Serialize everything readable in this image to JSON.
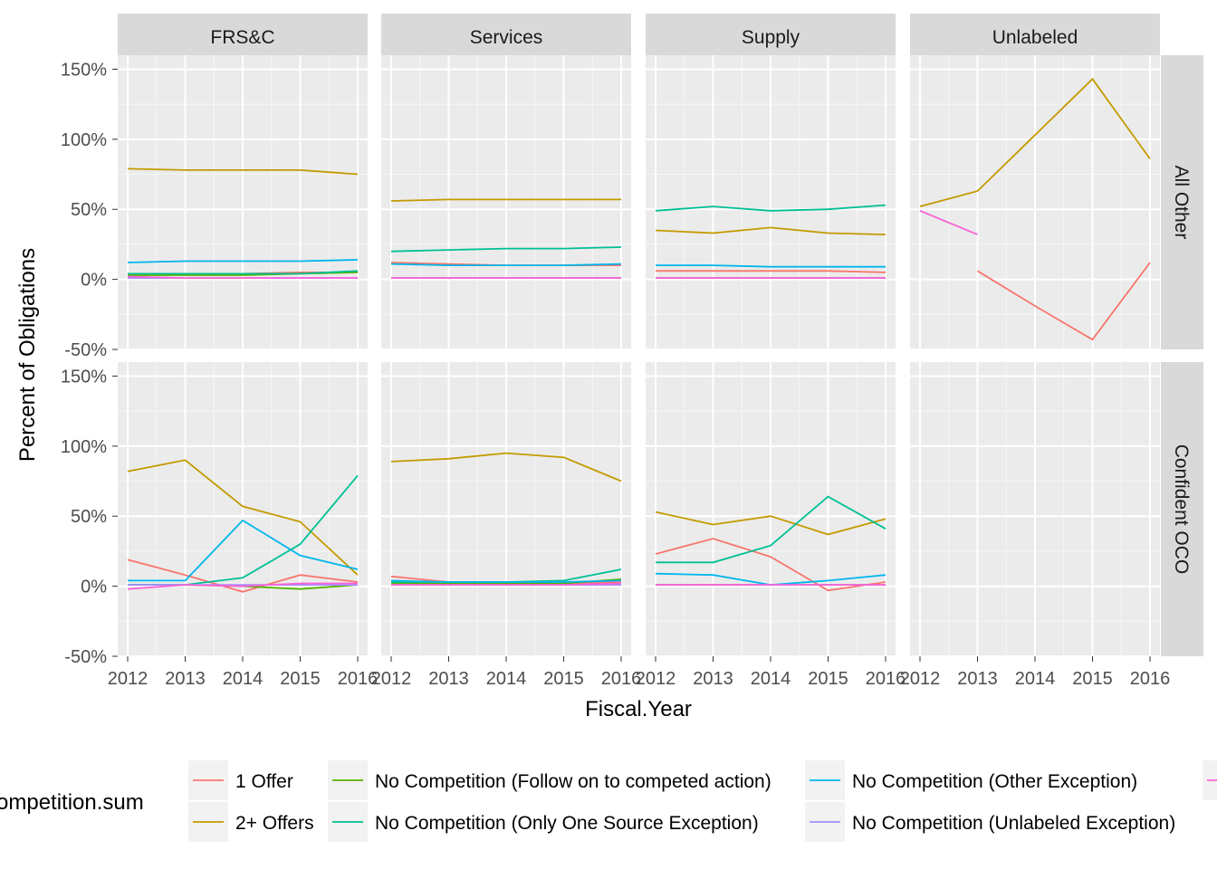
{
  "chart_data": {
    "type": "line",
    "x": [
      2012,
      2013,
      2014,
      2015,
      2016
    ],
    "xlabel": "Fiscal.Year",
    "ylabel": "Percent of Obligations",
    "ylim": [
      -50,
      160
    ],
    "y_ticks": [
      "-50%",
      "0%",
      "50%",
      "100%",
      "150%"
    ],
    "grid": true,
    "legend_position": "bottom",
    "legend_title": "ompetition.sum",
    "facet_columns": [
      "FRS&C",
      "Services",
      "Supply",
      "Unlabeled"
    ],
    "facet_rows": [
      "All Other",
      "Confident OCO"
    ],
    "series_legend": [
      {
        "name": "1 Offer",
        "color": "#F8766D"
      },
      {
        "name": "2+ Offers",
        "color": "#C49A00"
      },
      {
        "name": "No Competition (Follow on to competed action)",
        "color": "#53B400"
      },
      {
        "name": "No Competition (Only One Source Exception)",
        "color": "#00C094"
      },
      {
        "name": "No Competition (Other Exception)",
        "color": "#00B6EB"
      },
      {
        "name": "No Competition (Unlabeled Exception)",
        "color": "#A58AFF"
      },
      {
        "name": "",
        "color": "#FB61D7"
      }
    ],
    "panels": [
      {
        "col": 0,
        "row": 0,
        "series": [
          {
            "name": "1 Offer",
            "values": [
              4,
              4,
              4,
              5,
              5
            ]
          },
          {
            "name": "2+ Offers",
            "values": [
              79,
              78,
              78,
              78,
              75
            ]
          },
          {
            "name": "No Competition (Follow on to competed action)",
            "values": [
              3,
              3,
              3,
              4,
              5
            ]
          },
          {
            "name": "No Competition (Only One Source Exception)",
            "values": [
              4,
              4,
              4,
              4,
              6
            ]
          },
          {
            "name": "No Competition (Other Exception)",
            "values": [
              12,
              13,
              13,
              13,
              14
            ]
          },
          {
            "name": "No Competition (Unlabeled Exception)",
            "values": [
              1,
              1,
              1,
              1,
              1
            ]
          },
          {
            "name": "",
            "values": [
              2,
              1,
              1,
              1,
              1
            ]
          }
        ]
      },
      {
        "col": 1,
        "row": 0,
        "series": [
          {
            "name": "1 Offer",
            "values": [
              12,
              11,
              10,
              10,
              10
            ]
          },
          {
            "name": "2+ Offers",
            "values": [
              56,
              57,
              57,
              57,
              57
            ]
          },
          {
            "name": "No Competition (Follow on to competed action)",
            "values": [
              1,
              1,
              1,
              1,
              1
            ]
          },
          {
            "name": "No Competition (Only One Source Exception)",
            "values": [
              20,
              21,
              22,
              22,
              23
            ]
          },
          {
            "name": "No Competition (Other Exception)",
            "values": [
              11,
              10,
              10,
              10,
              11
            ]
          },
          {
            "name": "No Competition (Unlabeled Exception)",
            "values": [
              1,
              1,
              1,
              1,
              1
            ]
          },
          {
            "name": "",
            "values": [
              1,
              1,
              1,
              1,
              1
            ]
          }
        ]
      },
      {
        "col": 2,
        "row": 0,
        "series": [
          {
            "name": "1 Offer",
            "values": [
              6,
              6,
              6,
              6,
              5
            ]
          },
          {
            "name": "2+ Offers",
            "values": [
              35,
              33,
              37,
              33,
              32
            ]
          },
          {
            "name": "No Competition (Follow on to competed action)",
            "values": [
              1,
              1,
              1,
              1,
              1
            ]
          },
          {
            "name": "No Competition (Only One Source Exception)",
            "values": [
              49,
              52,
              49,
              50,
              53
            ]
          },
          {
            "name": "No Competition (Other Exception)",
            "values": [
              10,
              10,
              9,
              9,
              9
            ]
          },
          {
            "name": "No Competition (Unlabeled Exception)",
            "values": [
              1,
              1,
              1,
              1,
              1
            ]
          },
          {
            "name": "",
            "values": [
              1,
              1,
              1,
              1,
              1
            ]
          }
        ]
      },
      {
        "col": 3,
        "row": 0,
        "series": [
          {
            "name": "1 Offer",
            "values": [
              null,
              6,
              -19,
              -43,
              12
            ]
          },
          {
            "name": "2+ Offers",
            "values": [
              52,
              63,
              103,
              143,
              86
            ]
          },
          {
            "name": "",
            "values": [
              49,
              32,
              null,
              null,
              null
            ]
          }
        ]
      },
      {
        "col": 0,
        "row": 1,
        "series": [
          {
            "name": "1 Offer",
            "values": [
              19,
              8,
              -4,
              8,
              3
            ]
          },
          {
            "name": "2+ Offers",
            "values": [
              82,
              90,
              57,
              46,
              8
            ]
          },
          {
            "name": "No Competition (Follow on to competed action)",
            "values": [
              1,
              1,
              0,
              -2,
              1
            ]
          },
          {
            "name": "No Competition (Only One Source Exception)",
            "values": [
              1,
              1,
              6,
              30,
              79
            ]
          },
          {
            "name": "No Competition (Other Exception)",
            "values": [
              4,
              4,
              47,
              22,
              12
            ]
          },
          {
            "name": "No Competition (Unlabeled Exception)",
            "values": [
              1,
              1,
              1,
              1,
              1
            ]
          },
          {
            "name": "",
            "values": [
              -2,
              1,
              0,
              2,
              2
            ]
          }
        ]
      },
      {
        "col": 1,
        "row": 1,
        "series": [
          {
            "name": "1 Offer",
            "values": [
              7,
              3,
              2,
              2,
              3
            ]
          },
          {
            "name": "2+ Offers",
            "values": [
              89,
              91,
              95,
              92,
              75
            ]
          },
          {
            "name": "No Competition (Follow on to competed action)",
            "values": [
              2,
              2,
              2,
              2,
              5
            ]
          },
          {
            "name": "No Competition (Only One Source Exception)",
            "values": [
              3,
              3,
              3,
              4,
              12
            ]
          },
          {
            "name": "No Competition (Other Exception)",
            "values": [
              4,
              3,
              3,
              3,
              4
            ]
          },
          {
            "name": "No Competition (Unlabeled Exception)",
            "values": [
              1,
              1,
              1,
              1,
              1
            ]
          },
          {
            "name": "",
            "values": [
              1,
              1,
              1,
              1,
              2
            ]
          }
        ]
      },
      {
        "col": 2,
        "row": 1,
        "series": [
          {
            "name": "1 Offer",
            "values": [
              23,
              34,
              21,
              -3,
              3
            ]
          },
          {
            "name": "2+ Offers",
            "values": [
              53,
              44,
              50,
              37,
              48
            ]
          },
          {
            "name": "No Competition (Follow on to competed action)",
            "values": [
              1,
              1,
              1,
              1,
              1
            ]
          },
          {
            "name": "No Competition (Only One Source Exception)",
            "values": [
              17,
              17,
              29,
              64,
              41
            ]
          },
          {
            "name": "No Competition (Other Exception)",
            "values": [
              9,
              8,
              1,
              4,
              8
            ]
          },
          {
            "name": "No Competition (Unlabeled Exception)",
            "values": [
              1,
              1,
              1,
              1,
              1
            ]
          },
          {
            "name": "",
            "values": [
              1,
              1,
              1,
              1,
              1
            ]
          }
        ]
      },
      {
        "col": 3,
        "row": 1,
        "series": []
      }
    ]
  }
}
